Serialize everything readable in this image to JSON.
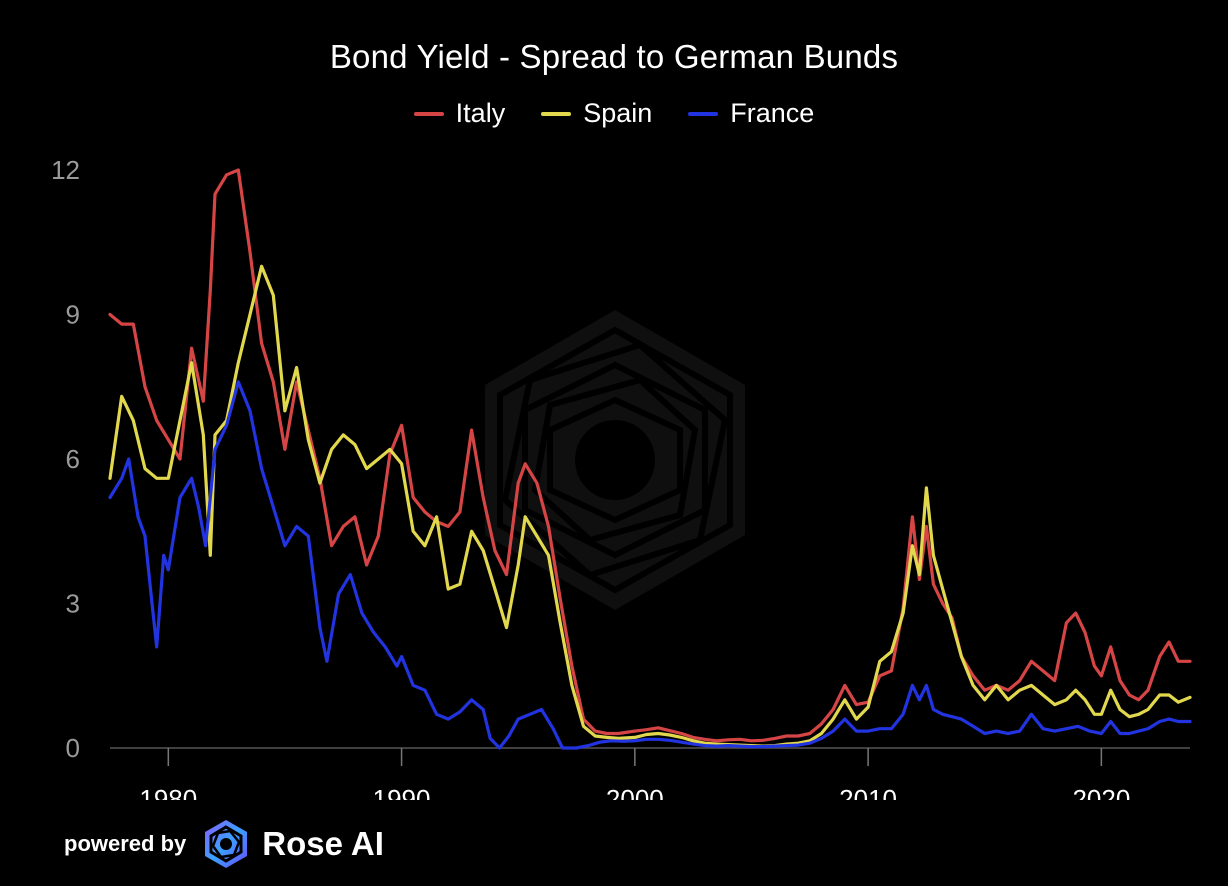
{
  "chart_data": {
    "type": "line",
    "title": "Bond Yield - Spread to German Bunds",
    "xlabel": "",
    "ylabel": "",
    "xlim": [
      1977.5,
      2023.8
    ],
    "ylim": [
      0,
      12
    ],
    "yticks": [
      0,
      3,
      6,
      9,
      12
    ],
    "xticks": [
      1980,
      1990,
      2000,
      2010,
      2020
    ],
    "grid": false,
    "legend_position": "top-center",
    "series": [
      {
        "name": "Italy",
        "color": "#d64545",
        "points": [
          [
            1977.5,
            9.0
          ],
          [
            1978.0,
            8.8
          ],
          [
            1978.5,
            8.8
          ],
          [
            1979.0,
            7.5
          ],
          [
            1979.5,
            6.8
          ],
          [
            1980.0,
            6.4
          ],
          [
            1980.5,
            6.0
          ],
          [
            1981.0,
            8.3
          ],
          [
            1981.5,
            7.2
          ],
          [
            1981.8,
            9.5
          ],
          [
            1982.0,
            11.5
          ],
          [
            1982.5,
            11.9
          ],
          [
            1983.0,
            12.0
          ],
          [
            1983.5,
            10.3
          ],
          [
            1984.0,
            8.4
          ],
          [
            1984.5,
            7.6
          ],
          [
            1985.0,
            6.2
          ],
          [
            1985.5,
            7.6
          ],
          [
            1986.0,
            6.6
          ],
          [
            1986.5,
            5.6
          ],
          [
            1987.0,
            4.2
          ],
          [
            1987.5,
            4.6
          ],
          [
            1988.0,
            4.8
          ],
          [
            1988.5,
            3.8
          ],
          [
            1989.0,
            4.4
          ],
          [
            1989.5,
            6.1
          ],
          [
            1990.0,
            6.7
          ],
          [
            1990.5,
            5.2
          ],
          [
            1991.0,
            4.9
          ],
          [
            1991.5,
            4.7
          ],
          [
            1992.0,
            4.6
          ],
          [
            1992.5,
            4.9
          ],
          [
            1993.0,
            6.6
          ],
          [
            1993.5,
            5.2
          ],
          [
            1994.0,
            4.1
          ],
          [
            1994.5,
            3.6
          ],
          [
            1995.0,
            5.5
          ],
          [
            1995.3,
            5.9
          ],
          [
            1995.8,
            5.5
          ],
          [
            1996.3,
            4.6
          ],
          [
            1996.8,
            3.1
          ],
          [
            1997.3,
            1.7
          ],
          [
            1997.8,
            0.6
          ],
          [
            1998.3,
            0.35
          ],
          [
            1998.8,
            0.3
          ],
          [
            1999.3,
            0.3
          ],
          [
            2000.0,
            0.35
          ],
          [
            2000.5,
            0.38
          ],
          [
            2001.0,
            0.42
          ],
          [
            2001.5,
            0.36
          ],
          [
            2002.0,
            0.3
          ],
          [
            2002.5,
            0.22
          ],
          [
            2003.0,
            0.18
          ],
          [
            2003.5,
            0.15
          ],
          [
            2004.0,
            0.17
          ],
          [
            2004.5,
            0.18
          ],
          [
            2005.0,
            0.15
          ],
          [
            2005.5,
            0.16
          ],
          [
            2006.0,
            0.2
          ],
          [
            2006.5,
            0.25
          ],
          [
            2007.0,
            0.25
          ],
          [
            2007.5,
            0.3
          ],
          [
            2008.0,
            0.5
          ],
          [
            2008.5,
            0.8
          ],
          [
            2009.0,
            1.3
          ],
          [
            2009.5,
            0.9
          ],
          [
            2010.0,
            0.95
          ],
          [
            2010.5,
            1.5
          ],
          [
            2011.0,
            1.6
          ],
          [
            2011.5,
            2.9
          ],
          [
            2011.9,
            4.8
          ],
          [
            2012.2,
            3.5
          ],
          [
            2012.5,
            4.6
          ],
          [
            2012.8,
            3.4
          ],
          [
            2013.2,
            3.0
          ],
          [
            2013.6,
            2.7
          ],
          [
            2014.0,
            1.9
          ],
          [
            2014.5,
            1.5
          ],
          [
            2015.0,
            1.2
          ],
          [
            2015.5,
            1.3
          ],
          [
            2016.0,
            1.2
          ],
          [
            2016.5,
            1.4
          ],
          [
            2017.0,
            1.8
          ],
          [
            2017.5,
            1.6
          ],
          [
            2018.0,
            1.4
          ],
          [
            2018.5,
            2.6
          ],
          [
            2018.9,
            2.8
          ],
          [
            2019.3,
            2.4
          ],
          [
            2019.7,
            1.7
          ],
          [
            2020.0,
            1.5
          ],
          [
            2020.4,
            2.1
          ],
          [
            2020.8,
            1.4
          ],
          [
            2021.2,
            1.1
          ],
          [
            2021.6,
            1.0
          ],
          [
            2022.0,
            1.2
          ],
          [
            2022.5,
            1.9
          ],
          [
            2022.9,
            2.2
          ],
          [
            2023.3,
            1.8
          ],
          [
            2023.8,
            1.8
          ]
        ]
      },
      {
        "name": "Spain",
        "color": "#e2d84e",
        "points": [
          [
            1977.5,
            5.6
          ],
          [
            1978.0,
            7.3
          ],
          [
            1978.5,
            6.8
          ],
          [
            1979.0,
            5.8
          ],
          [
            1979.5,
            5.6
          ],
          [
            1980.0,
            5.6
          ],
          [
            1980.5,
            6.8
          ],
          [
            1981.0,
            8.0
          ],
          [
            1981.5,
            6.5
          ],
          [
            1981.8,
            4.0
          ],
          [
            1982.0,
            6.5
          ],
          [
            1982.5,
            6.8
          ],
          [
            1983.0,
            8.0
          ],
          [
            1983.5,
            9.0
          ],
          [
            1984.0,
            10.0
          ],
          [
            1984.5,
            9.4
          ],
          [
            1985.0,
            7.0
          ],
          [
            1985.5,
            7.9
          ],
          [
            1986.0,
            6.4
          ],
          [
            1986.5,
            5.5
          ],
          [
            1987.0,
            6.2
          ],
          [
            1987.5,
            6.5
          ],
          [
            1988.0,
            6.3
          ],
          [
            1988.5,
            5.8
          ],
          [
            1989.0,
            6.0
          ],
          [
            1989.5,
            6.2
          ],
          [
            1990.0,
            5.9
          ],
          [
            1990.5,
            4.5
          ],
          [
            1991.0,
            4.2
          ],
          [
            1991.5,
            4.8
          ],
          [
            1992.0,
            3.3
          ],
          [
            1992.5,
            3.4
          ],
          [
            1993.0,
            4.5
          ],
          [
            1993.5,
            4.1
          ],
          [
            1994.0,
            3.3
          ],
          [
            1994.5,
            2.5
          ],
          [
            1995.0,
            3.8
          ],
          [
            1995.3,
            4.8
          ],
          [
            1995.8,
            4.4
          ],
          [
            1996.3,
            4.0
          ],
          [
            1996.8,
            2.6
          ],
          [
            1997.3,
            1.3
          ],
          [
            1997.8,
            0.45
          ],
          [
            1998.3,
            0.25
          ],
          [
            1998.8,
            0.22
          ],
          [
            1999.3,
            0.2
          ],
          [
            2000.0,
            0.22
          ],
          [
            2000.5,
            0.28
          ],
          [
            2001.0,
            0.3
          ],
          [
            2001.5,
            0.27
          ],
          [
            2002.0,
            0.22
          ],
          [
            2002.5,
            0.15
          ],
          [
            2003.0,
            0.1
          ],
          [
            2003.5,
            0.08
          ],
          [
            2004.0,
            0.07
          ],
          [
            2004.5,
            0.06
          ],
          [
            2005.0,
            0.05
          ],
          [
            2005.5,
            0.04
          ],
          [
            2006.0,
            0.05
          ],
          [
            2006.5,
            0.08
          ],
          [
            2007.0,
            0.1
          ],
          [
            2007.5,
            0.15
          ],
          [
            2008.0,
            0.3
          ],
          [
            2008.5,
            0.6
          ],
          [
            2009.0,
            1.0
          ],
          [
            2009.5,
            0.6
          ],
          [
            2010.0,
            0.85
          ],
          [
            2010.5,
            1.8
          ],
          [
            2011.0,
            2.0
          ],
          [
            2011.5,
            2.8
          ],
          [
            2011.9,
            4.2
          ],
          [
            2012.2,
            3.6
          ],
          [
            2012.5,
            5.4
          ],
          [
            2012.8,
            4.0
          ],
          [
            2013.2,
            3.3
          ],
          [
            2013.6,
            2.6
          ],
          [
            2014.0,
            1.9
          ],
          [
            2014.5,
            1.3
          ],
          [
            2015.0,
            1.0
          ],
          [
            2015.5,
            1.3
          ],
          [
            2016.0,
            1.0
          ],
          [
            2016.5,
            1.2
          ],
          [
            2017.0,
            1.3
          ],
          [
            2017.5,
            1.1
          ],
          [
            2018.0,
            0.9
          ],
          [
            2018.5,
            1.0
          ],
          [
            2018.9,
            1.2
          ],
          [
            2019.3,
            1.0
          ],
          [
            2019.7,
            0.7
          ],
          [
            2020.0,
            0.7
          ],
          [
            2020.4,
            1.2
          ],
          [
            2020.8,
            0.8
          ],
          [
            2021.2,
            0.65
          ],
          [
            2021.6,
            0.7
          ],
          [
            2022.0,
            0.8
          ],
          [
            2022.5,
            1.1
          ],
          [
            2022.9,
            1.1
          ],
          [
            2023.3,
            0.95
          ],
          [
            2023.8,
            1.05
          ]
        ]
      },
      {
        "name": "France",
        "color": "#2233e0",
        "points": [
          [
            1977.5,
            5.2
          ],
          [
            1978.0,
            5.6
          ],
          [
            1978.3,
            6.0
          ],
          [
            1978.7,
            4.8
          ],
          [
            1979.0,
            4.4
          ],
          [
            1979.3,
            3.0
          ],
          [
            1979.5,
            2.1
          ],
          [
            1979.8,
            4.0
          ],
          [
            1980.0,
            3.7
          ],
          [
            1980.5,
            5.2
          ],
          [
            1981.0,
            5.6
          ],
          [
            1981.3,
            5.0
          ],
          [
            1981.6,
            4.2
          ],
          [
            1982.0,
            6.2
          ],
          [
            1982.5,
            6.7
          ],
          [
            1983.0,
            7.6
          ],
          [
            1983.5,
            7.0
          ],
          [
            1984.0,
            5.8
          ],
          [
            1984.5,
            5.0
          ],
          [
            1985.0,
            4.2
          ],
          [
            1985.5,
            4.6
          ],
          [
            1986.0,
            4.4
          ],
          [
            1986.5,
            2.5
          ],
          [
            1986.8,
            1.8
          ],
          [
            1987.3,
            3.2
          ],
          [
            1987.8,
            3.6
          ],
          [
            1988.3,
            2.8
          ],
          [
            1988.8,
            2.4
          ],
          [
            1989.3,
            2.1
          ],
          [
            1989.8,
            1.7
          ],
          [
            1990.0,
            1.9
          ],
          [
            1990.5,
            1.3
          ],
          [
            1991.0,
            1.2
          ],
          [
            1991.5,
            0.7
          ],
          [
            1992.0,
            0.6
          ],
          [
            1992.5,
            0.75
          ],
          [
            1993.0,
            1.0
          ],
          [
            1993.5,
            0.8
          ],
          [
            1993.8,
            0.2
          ],
          [
            1994.2,
            0.0
          ],
          [
            1994.6,
            0.25
          ],
          [
            1995.0,
            0.6
          ],
          [
            1995.5,
            0.7
          ],
          [
            1996.0,
            0.8
          ],
          [
            1996.5,
            0.4
          ],
          [
            1996.9,
            0.0
          ],
          [
            1997.5,
            0.0
          ],
          [
            1998.0,
            0.05
          ],
          [
            1998.5,
            0.12
          ],
          [
            1999.0,
            0.15
          ],
          [
            1999.5,
            0.14
          ],
          [
            2000.0,
            0.15
          ],
          [
            2000.5,
            0.18
          ],
          [
            2001.0,
            0.18
          ],
          [
            2001.5,
            0.16
          ],
          [
            2002.0,
            0.12
          ],
          [
            2002.5,
            0.08
          ],
          [
            2003.0,
            0.05
          ],
          [
            2003.5,
            0.04
          ],
          [
            2004.0,
            0.05
          ],
          [
            2004.5,
            0.04
          ],
          [
            2005.0,
            0.03
          ],
          [
            2005.5,
            0.03
          ],
          [
            2006.0,
            0.04
          ],
          [
            2006.5,
            0.05
          ],
          [
            2007.0,
            0.06
          ],
          [
            2007.5,
            0.1
          ],
          [
            2008.0,
            0.2
          ],
          [
            2008.5,
            0.35
          ],
          [
            2009.0,
            0.6
          ],
          [
            2009.5,
            0.35
          ],
          [
            2010.0,
            0.35
          ],
          [
            2010.5,
            0.4
          ],
          [
            2011.0,
            0.4
          ],
          [
            2011.5,
            0.7
          ],
          [
            2011.9,
            1.3
          ],
          [
            2012.2,
            1.0
          ],
          [
            2012.5,
            1.3
          ],
          [
            2012.8,
            0.8
          ],
          [
            2013.2,
            0.7
          ],
          [
            2013.6,
            0.65
          ],
          [
            2014.0,
            0.6
          ],
          [
            2014.5,
            0.45
          ],
          [
            2015.0,
            0.3
          ],
          [
            2015.5,
            0.35
          ],
          [
            2016.0,
            0.3
          ],
          [
            2016.5,
            0.35
          ],
          [
            2017.0,
            0.7
          ],
          [
            2017.5,
            0.4
          ],
          [
            2018.0,
            0.35
          ],
          [
            2018.5,
            0.4
          ],
          [
            2019.0,
            0.45
          ],
          [
            2019.5,
            0.35
          ],
          [
            2020.0,
            0.3
          ],
          [
            2020.4,
            0.55
          ],
          [
            2020.8,
            0.3
          ],
          [
            2021.2,
            0.3
          ],
          [
            2021.6,
            0.35
          ],
          [
            2022.0,
            0.4
          ],
          [
            2022.5,
            0.55
          ],
          [
            2022.9,
            0.6
          ],
          [
            2023.3,
            0.55
          ],
          [
            2023.8,
            0.55
          ]
        ]
      }
    ]
  },
  "footer": {
    "powered_label": "powered by",
    "brand_name": "Rose AI"
  }
}
